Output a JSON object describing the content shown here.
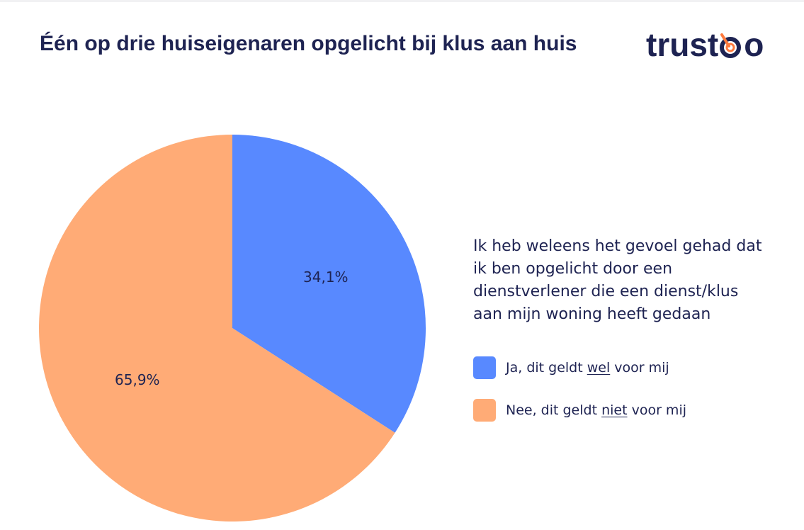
{
  "title": "Één op drie huiseigenaren opgelicht bij klus aan huis",
  "logo": {
    "text_start": "trust",
    "text_end": "o",
    "mark_icon": "target-check-icon"
  },
  "question": "Ik heb weleens het gevoel gehad dat ik ben opgelicht door een dienstverlener die een dienst/klus aan mijn woning heeft gedaan",
  "legend": [
    {
      "before": "Ja, dit geldt ",
      "emphasis": "wel",
      "after": " voor mij"
    },
    {
      "before": "Nee, dit geldt ",
      "emphasis": "niet",
      "after": " voor mij"
    }
  ],
  "chart_data": {
    "type": "pie",
    "title": "Één op drie huiseigenaren opgelicht bij klus aan huis",
    "slices": [
      {
        "label": "Ja, dit geldt wel voor mij",
        "value": 34.1,
        "value_label": "34,1%",
        "color": "#5889ff"
      },
      {
        "label": "Nee, dit geldt niet voor mij",
        "value": 65.9,
        "value_label": "65,9%",
        "color": "#ffab76"
      }
    ],
    "legend_position": "right"
  }
}
